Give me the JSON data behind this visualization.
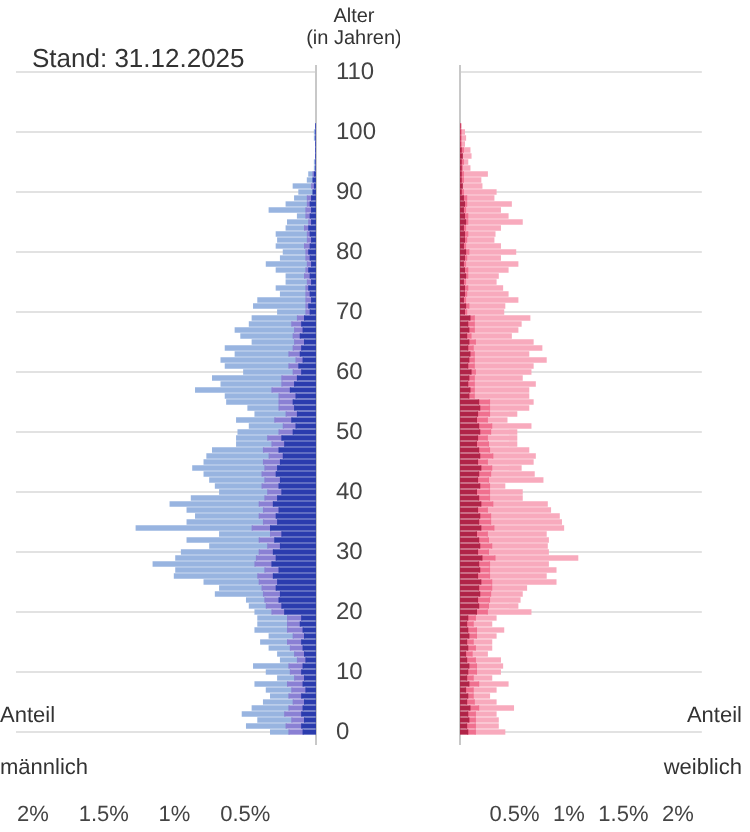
{
  "chart_data": [
    {
      "type": "bar",
      "orientation": "horizontal",
      "stacked": true,
      "title": "Stand: 31.12.2025",
      "ylabel": "Alter (in Jahren)",
      "xlabel": "männlich",
      "annotations": [
        "Anteil"
      ],
      "x": [
        0,
        1,
        2,
        3,
        4,
        5,
        6,
        7,
        8,
        9,
        10,
        11,
        12,
        13,
        14,
        15,
        16,
        17,
        18,
        19,
        20,
        21,
        22,
        23,
        24,
        25,
        26,
        27,
        28,
        29,
        30,
        31,
        32,
        33,
        34,
        35,
        36,
        37,
        38,
        39,
        40,
        41,
        42,
        43,
        44,
        45,
        46,
        47,
        48,
        49,
        50,
        51,
        52,
        53,
        54,
        55,
        56,
        57,
        58,
        59,
        60,
        61,
        62,
        63,
        64,
        65,
        66,
        67,
        68,
        69,
        70,
        71,
        72,
        73,
        74,
        75,
        76,
        77,
        78,
        79,
        80,
        81,
        82,
        83,
        84,
        85,
        86,
        87,
        88,
        89,
        90,
        91,
        92,
        93,
        94,
        95,
        96,
        97,
        98,
        99,
        100,
        101
      ],
      "series": [
        {
          "color": "#2b3cae",
          "values": [
            0.09,
            0.1,
            0.08,
            0.1,
            0.09,
            0.08,
            0.1,
            0.07,
            0.09,
            0.08,
            0.1,
            0.09,
            0.07,
            0.08,
            0.09,
            0.1,
            0.08,
            0.09,
            0.11,
            0.1,
            0.22,
            0.24,
            0.26,
            0.25,
            0.28,
            0.27,
            0.3,
            0.26,
            0.31,
            0.28,
            0.3,
            0.25,
            0.29,
            0.24,
            0.32,
            0.27,
            0.28,
            0.26,
            0.3,
            0.27,
            0.24,
            0.26,
            0.25,
            0.28,
            0.27,
            0.25,
            0.23,
            0.26,
            0.22,
            0.24,
            0.16,
            0.14,
            0.17,
            0.13,
            0.15,
            0.16,
            0.14,
            0.18,
            0.15,
            0.13,
            0.1,
            0.12,
            0.09,
            0.11,
            0.1,
            0.08,
            0.11,
            0.09,
            0.1,
            0.08,
            0.04,
            0.05,
            0.03,
            0.04,
            0.05,
            0.03,
            0.04,
            0.05,
            0.03,
            0.04,
            0.05,
            0.04,
            0.03,
            0.04,
            0.05,
            0.03,
            0.04,
            0.03,
            0.04,
            0.03,
            0.02,
            0.01,
            0.02,
            0.01,
            0,
            0,
            0,
            0,
            0,
            0,
            0,
            0
          ]
        },
        {
          "color": "#8a80d4",
          "values": [
            0.1,
            0.11,
            0.09,
            0.12,
            0.1,
            0.08,
            0.09,
            0.1,
            0.11,
            0.07,
            0.08,
            0.1,
            0.06,
            0.07,
            0.09,
            0.1,
            0.08,
            0.11,
            0.09,
            0.1,
            0.09,
            0.11,
            0.1,
            0.12,
            0.1,
            0.13,
            0.11,
            0.1,
            0.12,
            0.14,
            0.1,
            0.09,
            0.11,
            0.08,
            0.13,
            0.1,
            0.12,
            0.11,
            0.1,
            0.09,
            0.1,
            0.12,
            0.11,
            0.1,
            0.09,
            0.12,
            0.1,
            0.11,
            0.09,
            0.1,
            0.1,
            0.09,
            0.12,
            0.08,
            0.11,
            0.1,
            0.12,
            0.13,
            0.09,
            0.11,
            0.06,
            0.07,
            0.05,
            0.08,
            0.06,
            0.07,
            0.05,
            0.06,
            0.07,
            0.05,
            0.03,
            0.02,
            0.04,
            0.03,
            0.02,
            0.03,
            0.04,
            0.02,
            0.03,
            0.03,
            0.02,
            0.04,
            0.03,
            0.02,
            0.03,
            0.02,
            0.03,
            0.04,
            0.02,
            0.03,
            null,
            0.02,
            null,
            0.01,
            0,
            0,
            0,
            0,
            0,
            0,
            0,
            0
          ]
        },
        {
          "color": "#98b4e0",
          "values": [
            0.13,
            0.28,
            0.24,
            0.3,
            0.26,
            0.21,
            0.13,
            0.18,
            0.23,
            0.12,
            0.17,
            0.25,
            0.12,
            0.12,
            0.15,
            0.19,
            0.17,
            0.23,
            0.21,
            0.21,
            0.12,
            0.12,
            0.13,
            0.34,
            0.3,
            0.39,
            0.59,
            0.63,
            0.72,
            0.57,
            0.55,
            0.41,
            0.51,
            0.36,
            0.82,
            0.54,
            0.45,
            0.54,
            0.63,
            0.52,
            0.34,
            0.33,
            0.39,
            0.41,
            0.51,
            0.42,
            0.44,
            0.36,
            0.25,
            0.22,
            0.29,
            0.24,
            0.27,
            0.22,
            0.22,
            0.37,
            0.38,
            0.54,
            0.43,
            0.49,
            0.35,
            0.45,
            0.53,
            0.38,
            0.48,
            0.3,
            0.37,
            0.42,
            0.3,
            0.32,
            0.2,
            0.37,
            0.34,
            0.18,
            0.21,
            0.15,
            0.13,
            0.21,
            0.29,
            0.18,
            0.16,
            0.2,
            0.21,
            0.22,
            0.13,
            0.15,
            0.06,
            0.26,
            0.15,
            0.09,
            0.1,
            0.13,
            0.04,
            0.03,
            0.01,
            0.01,
            0,
            0,
            0,
            0.01,
            0.01,
            0
          ]
        }
      ],
      "xlim": [
        2.12,
        0
      ],
      "xticks": [
        {
          "value": 0,
          "label": null
        },
        {
          "value": 0.5,
          "label": "0.5%"
        },
        {
          "value": 1,
          "label": "1%"
        },
        {
          "value": 1.5,
          "label": "1.5%"
        },
        {
          "value": 2,
          "label": "2%"
        }
      ],
      "ylim": [
        -2,
        111
      ],
      "yticks": [
        0,
        10,
        20,
        30,
        40,
        50,
        60,
        70,
        80,
        90,
        100,
        110
      ],
      "grid": "y"
    },
    {
      "type": "bar",
      "orientation": "horizontal",
      "stacked": true,
      "xlabel": "weiblich",
      "annotations": [
        "Anteil"
      ],
      "tick_labels": "x",
      "x": [
        0,
        1,
        2,
        3,
        4,
        5,
        6,
        7,
        8,
        9,
        10,
        11,
        12,
        13,
        14,
        15,
        16,
        17,
        18,
        19,
        20,
        21,
        22,
        23,
        24,
        25,
        26,
        27,
        28,
        29,
        30,
        31,
        32,
        33,
        34,
        35,
        36,
        37,
        38,
        39,
        40,
        41,
        42,
        43,
        44,
        45,
        46,
        47,
        48,
        49,
        50,
        51,
        52,
        53,
        54,
        55,
        56,
        57,
        58,
        59,
        60,
        61,
        62,
        63,
        64,
        65,
        66,
        67,
        68,
        69,
        70,
        71,
        72,
        73,
        74,
        75,
        76,
        77,
        78,
        79,
        80,
        81,
        82,
        83,
        84,
        85,
        86,
        87,
        88,
        89,
        90,
        91,
        92,
        93,
        94,
        95,
        96,
        97,
        98,
        99,
        100,
        101
      ],
      "series": [
        {
          "color": "#b02448",
          "values": [
            0.07,
            0.06,
            0.08,
            0.07,
            0.09,
            0.06,
            0.07,
            0.05,
            0.08,
            0.06,
            0.07,
            0.08,
            0.06,
            0.05,
            0.07,
            0.06,
            0.08,
            0.07,
            0.06,
            0.07,
            0.15,
            0.17,
            0.16,
            0.18,
            0.17,
            0.19,
            0.16,
            0.18,
            0.17,
            0.2,
            0.16,
            0.18,
            0.17,
            0.15,
            0.19,
            0.17,
            0.18,
            0.16,
            0.19,
            0.17,
            0.15,
            0.18,
            0.16,
            0.17,
            0.19,
            0.16,
            0.18,
            0.17,
            0.15,
            0.16,
            0.18,
            0.17,
            0.15,
            0.16,
            0.18,
            0.17,
            0.08,
            0.09,
            0.07,
            0.08,
            0.1,
            0.07,
            0.08,
            0.09,
            0.07,
            0.08,
            0.06,
            0.08,
            0.07,
            0.09,
            0.04,
            0.05,
            0.03,
            0.04,
            0.04,
            0.03,
            0.05,
            0.04,
            0.03,
            0.04,
            0.05,
            0.03,
            0.04,
            0.04,
            0.03,
            0.05,
            0.04,
            0.03,
            0.04,
            0.03,
            0.01,
            0.02,
            0.01,
            0.01,
            0.01,
            0.01,
            0.02,
            0.01,
            0,
            0,
            0,
            0
          ]
        },
        {
          "color": "#f0708f",
          "values": [
            0.07,
            0.08,
            0.06,
            0.07,
            0.08,
            0.07,
            0.05,
            0.07,
            0.09,
            0.06,
            0.08,
            0.07,
            0.08,
            0.06,
            0.07,
            0.06,
            0.07,
            0.08,
            0.06,
            0.07,
            0.1,
            0.09,
            0.11,
            0.1,
            0.12,
            0.1,
            0.11,
            0.09,
            0.1,
            0.12,
            0.1,
            0.11,
            0.09,
            0.1,
            0.12,
            0.11,
            0.1,
            0.09,
            0.11,
            0.1,
            0.12,
            0.09,
            0.1,
            0.11,
            0.1,
            0.09,
            0.12,
            0.1,
            0.11,
            0.09,
            0.1,
            0.12,
            0.1,
            0.11,
            0.09,
            0.1,
            0.05,
            0.04,
            0.06,
            0.05,
            0.04,
            0.06,
            0.05,
            0.04,
            0.05,
            0.06,
            0.04,
            0.05,
            0.06,
            0.04,
            0.02,
            0.03,
            0.02,
            0.02,
            0.03,
            0.02,
            0.02,
            0.03,
            0.02,
            0.02,
            0.03,
            0.02,
            0.02,
            0.03,
            0.02,
            0.02,
            0.03,
            0.02,
            0.02,
            0.03,
            0.02,
            null,
            0.02,
            0.02,
            0.01,
            0.02,
            null,
            0.02,
            0.01,
            0.01,
            0.01,
            0
          ]
        },
        {
          "color": "#f8aabd",
          "values": [
            0.27,
            0.21,
            0.21,
            0.19,
            0.32,
            0.2,
            0.15,
            0.21,
            0.27,
            0.17,
            0.22,
            0.24,
            0.23,
            0.14,
            0.15,
            0.17,
            0.18,
            0.25,
            0.17,
            0.19,
            0.4,
            0.27,
            0.28,
            0.29,
            0.32,
            0.59,
            0.52,
            0.61,
            0.54,
            0.76,
            0.55,
            0.51,
            0.55,
            0.54,
            0.64,
            0.65,
            0.63,
            0.58,
            0.5,
            0.3,
            0.3,
            0.14,
            0.5,
            0.4,
            0.27,
            0.42,
            0.39,
            0.36,
            0.26,
            0.27,
            0.24,
            0.36,
            0.18,
            0.25,
            0.36,
            0.4,
            0.5,
            0.5,
            0.56,
            0.44,
            0.51,
            0.54,
            0.66,
            0.5,
            0.63,
            0.53,
            0.37,
            0.4,
            0.43,
            0.51,
            0.34,
            0.33,
            0.48,
            0.38,
            0.32,
            0.28,
            0.28,
            0.37,
            0.48,
            0.31,
            0.43,
            0.32,
            0.25,
            0.25,
            0.32,
            0.5,
            0.37,
            0.32,
            0.41,
            0.25,
            0.3,
            0.18,
            0.16,
            0.22,
            0.07,
            0.04,
            0.08,
            0.06,
            0.03,
            0.04,
            0.03,
            0.01
          ]
        }
      ],
      "xlim": [
        0,
        2.22
      ],
      "xticks": [
        {
          "value": 0,
          "label": null
        },
        {
          "value": 0.5,
          "label": "0.5%"
        },
        {
          "value": 1,
          "label": "1%"
        },
        {
          "value": 1.5,
          "label": "1.5%"
        },
        {
          "value": 2,
          "label": "2%"
        }
      ],
      "ylim": [
        -2,
        111
      ],
      "yticks": [
        0,
        10,
        20,
        30,
        40,
        50,
        60,
        70,
        80,
        90,
        100,
        110
      ],
      "grid": "y"
    }
  ]
}
